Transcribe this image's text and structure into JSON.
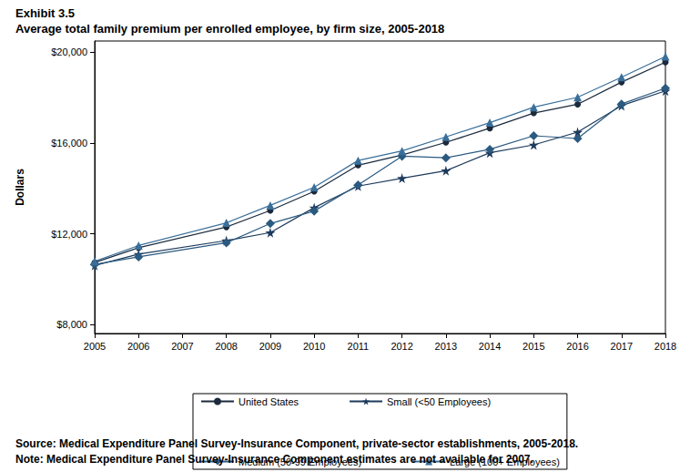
{
  "chart_data": {
    "type": "line",
    "title": "Exhibit 3.5",
    "subtitle": "Average total family premium per enrolled employee, by firm size, 2005-2018",
    "y_label": "Dollars",
    "x": [
      2005,
      2006,
      2008,
      2009,
      2010,
      2011,
      2012,
      2013,
      2014,
      2015,
      2016,
      2017,
      2018
    ],
    "series": [
      {
        "name": "United States",
        "color": "#1b2a3c",
        "marker": "circle",
        "values": [
          10728,
          11381,
          12298,
          13027,
          13871,
          15022,
          15473,
          16029,
          16655,
          17322,
          17710,
          18687,
          19565
        ]
      },
      {
        "name": "Small (<50 Employees)",
        "color": "#1d3a5c",
        "marker": "star",
        "values": [
          10600,
          11100,
          11700,
          12050,
          13150,
          14100,
          14450,
          14780,
          15570,
          15920,
          16480,
          17650,
          18300
        ]
      },
      {
        "name": "Medium (50-99 Employees)",
        "color": "#2b5a80",
        "marker": "diamond",
        "values": [
          10650,
          10980,
          11600,
          12450,
          13000,
          14150,
          15420,
          15350,
          15720,
          16320,
          16200,
          17720,
          18420
        ]
      },
      {
        "name": "Large (100+ Employees)",
        "color": "#3a6f9a",
        "marker": "triangle",
        "values": [
          10780,
          11480,
          12480,
          13250,
          14050,
          15230,
          15650,
          16270,
          16900,
          17580,
          18020,
          18900,
          19820
        ]
      }
    ],
    "xlim": [
      2005,
      2018
    ],
    "xticks": [
      2005,
      2006,
      2007,
      2008,
      2009,
      2010,
      2011,
      2012,
      2013,
      2014,
      2015,
      2016,
      2017,
      2018
    ],
    "ylim": [
      7600,
      20500
    ],
    "yticks": [
      {
        "value": 8000,
        "label": "$8,000"
      },
      {
        "value": 12000,
        "label": "$12,000"
      },
      {
        "value": 16000,
        "label": "$16,000"
      },
      {
        "value": 20000,
        "label": "$20,000"
      }
    ],
    "grid": false,
    "legend": "bottom",
    "source": "Source: Medical Expenditure Panel Survey-Insurance Component, private-sector establishments, 2005-2018.",
    "note": "Note: Medical Expenditure Panel Survey-Insurance Component estimates are not available for 2007."
  }
}
